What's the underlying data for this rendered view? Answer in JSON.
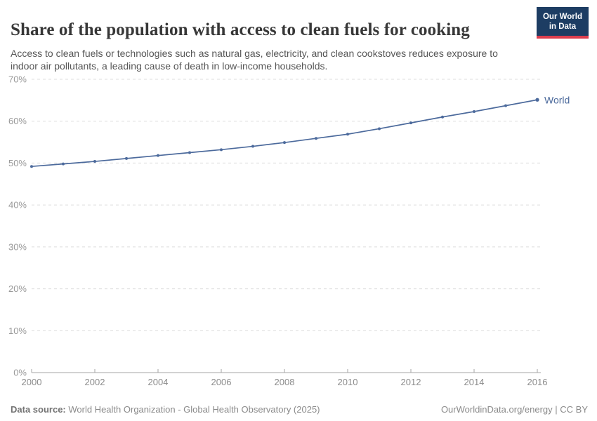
{
  "header": {
    "title": "Share of the population with access to clean fuels for cooking",
    "subtitle": "Access to clean fuels or technologies such as natural gas, electricity, and clean cookstoves reduces exposure to indoor air pollutants, a leading cause of death in low-income households.",
    "logo": {
      "line1": "Our World",
      "line2": "in Data",
      "bg_color": "#1d3d63",
      "accent_color": "#dc3e4e"
    }
  },
  "chart_data": {
    "type": "line",
    "title": "Share of the population with access to clean fuels for cooking",
    "xlabel": "",
    "ylabel": "",
    "xlim": [
      2000,
      2016
    ],
    "ylim": [
      0,
      70
    ],
    "grid": "horizontal-dashed",
    "legend_position": "end-of-line",
    "x_ticks": [
      2000,
      2002,
      2004,
      2006,
      2008,
      2010,
      2012,
      2014,
      2016
    ],
    "y_ticks": [
      0,
      10,
      20,
      30,
      40,
      50,
      60,
      70
    ],
    "y_suffix": "%",
    "colors": {
      "gridline": "#dcdcdc",
      "axis": "#a5a5a5",
      "tick_label": "#8c8c8c"
    },
    "series": [
      {
        "name": "World",
        "color": "#4c6a9c",
        "x": [
          2000,
          2001,
          2002,
          2003,
          2004,
          2005,
          2006,
          2007,
          2008,
          2009,
          2010,
          2011,
          2012,
          2013,
          2014,
          2015,
          2016
        ],
        "values": [
          49.2,
          49.8,
          50.4,
          51.1,
          51.8,
          52.5,
          53.2,
          54.0,
          54.9,
          55.9,
          56.9,
          58.2,
          59.6,
          61.0,
          62.3,
          63.7,
          65.1
        ]
      }
    ]
  },
  "footer": {
    "datasource_label": "Data source:",
    "datasource_value": " World Health Organization - Global Health Observatory (2025)",
    "right_text": "OurWorldinData.org/energy | CC BY"
  }
}
